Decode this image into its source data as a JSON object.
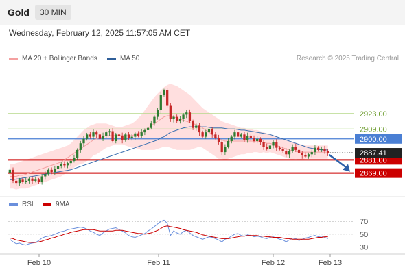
{
  "header": {
    "instrument": "Gold",
    "timeframe": "30 MIN"
  },
  "date_text": "Wednesday, February 12, 2025 11:57:05 AM CET",
  "legend": {
    "bollinger": "MA 20 + Bollinger Bands",
    "ma50": "MA 50",
    "credit": "Research © 2025 Trading Central"
  },
  "rsi_legend": {
    "rsi": "RSI",
    "ma": "9MA"
  },
  "colors": {
    "up": "#2e7d32",
    "down": "#c62828",
    "band": "#ffd9d9",
    "ma20": "#f4a0a0",
    "ma50": "#3a6fb0",
    "green_level": "#b5d98a",
    "blue_level": "#4a7fd4",
    "red_level": "#cc0000",
    "arrow": "#2b5fa8"
  },
  "chart_data": [
    {
      "type": "candlestick",
      "title": "",
      "ylim": [
        2852,
        2967
      ],
      "x_ticks": [
        "Feb 10",
        "Feb 11",
        "Feb 12",
        "Feb 13"
      ],
      "current_price": 2887.41,
      "levels": [
        {
          "value": 2923.0,
          "label": "2923.00",
          "kind": "resistance"
        },
        {
          "value": 2909.0,
          "label": "2909.00",
          "kind": "resistance"
        },
        {
          "value": 2900.0,
          "label": "2900.00",
          "kind": "pivot"
        },
        {
          "value": 2881.0,
          "label": "2881.00",
          "kind": "support"
        },
        {
          "value": 2869.0,
          "label": "2869.00",
          "kind": "support"
        }
      ],
      "close": [
        2872.0,
        2862.0,
        2860.0,
        2863.0,
        2861.0,
        2862.0,
        2864.0,
        2862.0,
        2863.0,
        2861.0,
        2866.0,
        2868.0,
        2872.0,
        2870.0,
        2873.0,
        2875.0,
        2877.0,
        2876.0,
        2878.0,
        2880.0,
        2883.0,
        2890.0,
        2896.0,
        2900.0,
        2904.0,
        2902.0,
        2906.0,
        2904.0,
        2900.0,
        2903.0,
        2906.0,
        2907.0,
        2898.0,
        2904.0,
        2903.0,
        2899.0,
        2904.0,
        2901.0,
        2902.0,
        2905.0,
        2903.0,
        2906.0,
        2908.0,
        2910.0,
        2914.0,
        2920.0,
        2926.0,
        2940.0,
        2944.0,
        2930.0,
        2918.0,
        2920.0,
        2916.0,
        2918.0,
        2922.0,
        2924.0,
        2916.0,
        2910.0,
        2912.0,
        2906.0,
        2902.0,
        2906.0,
        2909.0,
        2904.0,
        2901.0,
        2897.0,
        2888.0,
        2893.0,
        2898.0,
        2902.0,
        2906.0,
        2902.0,
        2904.0,
        2899.0,
        2903.0,
        2901.0,
        2898.0,
        2900.0,
        2897.0,
        2893.0,
        2891.0,
        2894.0,
        2897.0,
        2892.0,
        2891.0,
        2889.0,
        2886.0,
        2889.0,
        2893.0,
        2890.0,
        2887.0,
        2885.0,
        2884.0,
        2886.0,
        2888.0,
        2892.0,
        2890.0,
        2891.0,
        2889.0,
        2887.4
      ],
      "ma20": [
        2866.0,
        2866.0,
        2866.0,
        2867.0,
        2867.0,
        2868.0,
        2869.0,
        2870.0,
        2871.0,
        2872.0,
        2873.0,
        2874.0,
        2875.0,
        2876.0,
        2877.0,
        2878.0,
        2879.0,
        2881.0,
        2883.0,
        2885.0,
        2887.0,
        2889.0,
        2891.0,
        2893.0,
        2895.0,
        2897.0,
        2899.0,
        2900.0,
        2901.0,
        2902.0,
        2903.0,
        2903.0,
        2903.0,
        2903.0,
        2903.0,
        2903.0,
        2903.0,
        2903.0,
        2903.0,
        2904.0,
        2905.0,
        2906.0,
        2908.0,
        2910.0,
        2912.0,
        2914.0,
        2916.0,
        2918.0,
        2920.0,
        2921.0,
        2921.0,
        2920.0,
        2919.0,
        2918.0,
        2917.0,
        2916.0,
        2915.0,
        2914.0,
        2913.0,
        2912.0,
        2910.0,
        2908.0,
        2906.0,
        2904.0,
        2902.0,
        2900.0,
        2899.0,
        2898.0,
        2898.0,
        2898.0,
        2898.0,
        2898.0,
        2898.0,
        2898.0,
        2898.0,
        2898.0,
        2898.0,
        2898.0,
        2897.0,
        2897.0,
        2896.0,
        2896.0,
        2895.0,
        2894.0,
        2893.0,
        2892.0,
        2891.0,
        2890.0,
        2889.0,
        2889.0,
        2888.0,
        2888.0,
        2888.0,
        2888.0,
        2888.0,
        2888.0,
        2888.0,
        2888.0,
        2888.0,
        2888.0
      ],
      "band_upper": [
        2877.0,
        2877.0,
        2878.0,
        2879.0,
        2880.0,
        2881.0,
        2882.0,
        2883.0,
        2884.0,
        2885.0,
        2886.0,
        2887.0,
        2888.0,
        2889.0,
        2890.0,
        2891.0,
        2892.0,
        2893.0,
        2894.0,
        2896.0,
        2899.0,
        2902.0,
        2905.0,
        2908.0,
        2910.0,
        2912.0,
        2913.0,
        2914.0,
        2914.0,
        2914.0,
        2914.0,
        2913.0,
        2912.0,
        2911.0,
        2911.0,
        2911.0,
        2912.0,
        2913.0,
        2914.0,
        2916.0,
        2919.0,
        2922.0,
        2926.0,
        2930.0,
        2934.0,
        2938.0,
        2941.0,
        2944.0,
        2947.0,
        2949.0,
        2950.0,
        2949.0,
        2948.0,
        2946.0,
        2944.0,
        2942.0,
        2940.0,
        2937.0,
        2934.0,
        2931.0,
        2928.0,
        2926.0,
        2924.0,
        2922.0,
        2920.0,
        2918.0,
        2916.0,
        2915.0,
        2914.0,
        2913.0,
        2912.0,
        2911.0,
        2910.0,
        2910.0,
        2909.0,
        2909.0,
        2908.0,
        2908.0,
        2907.0,
        2906.0,
        2905.0,
        2904.0,
        2903.0,
        2902.0,
        2901.0,
        2900.0,
        2899.0,
        2898.0,
        2897.0,
        2896.0,
        2895.0,
        2895.0,
        2894.0,
        2894.0,
        2894.0,
        2894.0,
        2894.0,
        2894.0,
        2894.0,
        2894.0
      ],
      "band_lower": [
        2855.0,
        2855.0,
        2854.0,
        2855.0,
        2855.0,
        2855.0,
        2856.0,
        2857.0,
        2858.0,
        2859.0,
        2860.0,
        2861.0,
        2862.0,
        2863.0,
        2864.0,
        2865.0,
        2866.0,
        2868.0,
        2870.0,
        2872.0,
        2874.0,
        2876.0,
        2877.0,
        2878.0,
        2880.0,
        2882.0,
        2885.0,
        2886.0,
        2888.0,
        2890.0,
        2892.0,
        2893.0,
        2894.0,
        2895.0,
        2895.0,
        2895.0,
        2894.0,
        2893.0,
        2892.0,
        2892.0,
        2891.0,
        2890.0,
        2890.0,
        2890.0,
        2890.0,
        2890.0,
        2891.0,
        2892.0,
        2893.0,
        2893.0,
        2892.0,
        2891.0,
        2890.0,
        2890.0,
        2890.0,
        2890.0,
        2890.0,
        2891.0,
        2892.0,
        2893.0,
        2892.0,
        2890.0,
        2888.0,
        2886.0,
        2884.0,
        2882.0,
        2882.0,
        2881.0,
        2882.0,
        2883.0,
        2884.0,
        2885.0,
        2886.0,
        2886.0,
        2887.0,
        2887.0,
        2888.0,
        2888.0,
        2887.0,
        2888.0,
        2887.0,
        2888.0,
        2887.0,
        2886.0,
        2885.0,
        2884.0,
        2883.0,
        2882.0,
        2881.0,
        2882.0,
        2881.0,
        2881.0,
        2882.0,
        2882.0,
        2882.0,
        2882.0,
        2882.0,
        2882.0,
        2882.0,
        2882.0
      ],
      "ma50": [
        2863.0,
        2863.0,
        2863.5,
        2864.0,
        2864.5,
        2865.0,
        2865.5,
        2866.0,
        2866.5,
        2867.0,
        2867.5,
        2868.0,
        2868.5,
        2869.0,
        2869.5,
        2870.0,
        2870.5,
        2871.0,
        2871.5,
        2872.0,
        2873.0,
        2874.0,
        2875.0,
        2876.0,
        2877.0,
        2878.0,
        2879.0,
        2880.0,
        2881.0,
        2882.0,
        2883.0,
        2884.0,
        2885.0,
        2886.0,
        2887.0,
        2888.0,
        2889.0,
        2890.0,
        2891.0,
        2892.0,
        2893.0,
        2894.0,
        2895.0,
        2896.0,
        2897.0,
        2898.0,
        2899.0,
        2901.0,
        2902.0,
        2904.0,
        2906.0,
        2907.0,
        2908.0,
        2909.0,
        2910.0,
        2910.5,
        2911.0,
        2911.0,
        2911.0,
        2911.0,
        2911.0,
        2911.0,
        2910.5,
        2910.0,
        2910.0,
        2910.0,
        2910.0,
        2909.5,
        2909.0,
        2909.0,
        2909.0,
        2908.5,
        2908.0,
        2908.0,
        2907.5,
        2907.0,
        2906.5,
        2906.0,
        2905.5,
        2905.0,
        2904.5,
        2904.0,
        2903.0,
        2902.0,
        2901.0,
        2900.0,
        2899.0,
        2898.0,
        2897.0,
        2896.0,
        2895.0,
        2894.0,
        2893.0,
        2892.0,
        2891.5,
        2891.0,
        2890.5,
        2890.0,
        2890.0,
        2890.0
      ]
    },
    {
      "type": "line",
      "title": "",
      "ylim": [
        22,
        82
      ],
      "y_ticks": [
        70,
        50,
        30
      ],
      "series": [
        {
          "name": "RSI",
          "values": [
            42,
            38,
            35,
            36,
            34,
            33,
            35,
            36,
            37,
            40,
            44,
            46,
            47,
            48,
            50,
            52,
            54,
            55,
            57,
            58,
            59,
            60,
            61,
            60,
            58,
            55,
            53,
            50,
            48,
            52,
            55,
            58,
            59,
            60,
            57,
            55,
            52,
            48,
            46,
            45,
            47,
            49,
            51,
            55,
            58,
            62,
            66,
            70,
            72,
            67,
            48,
            55,
            52,
            50,
            54,
            56,
            52,
            48,
            46,
            44,
            42,
            44,
            46,
            45,
            43,
            41,
            38,
            42,
            44,
            47,
            50,
            51,
            48,
            47,
            49,
            48,
            46,
            47,
            46,
            44,
            43,
            45,
            46,
            44,
            42,
            41,
            38,
            41,
            44,
            43,
            40,
            42,
            44,
            45,
            47,
            48,
            46,
            47,
            45,
            43
          ]
        },
        {
          "name": "9MA",
          "values": [
            44,
            43,
            41,
            40,
            39,
            38,
            37,
            37,
            37,
            38,
            39,
            41,
            42,
            44,
            45,
            47,
            48,
            50,
            51,
            53,
            54,
            55,
            56,
            57,
            57,
            57,
            57,
            56,
            55,
            55,
            55,
            55,
            55,
            56,
            56,
            56,
            55,
            54,
            53,
            52,
            51,
            51,
            50,
            51,
            52,
            54,
            56,
            59,
            62,
            63,
            62,
            61,
            60,
            59,
            57,
            56,
            55,
            54,
            53,
            51,
            49,
            48,
            47,
            46,
            45,
            44,
            43,
            43,
            43,
            44,
            45,
            46,
            47,
            47,
            48,
            48,
            48,
            48,
            47,
            47,
            46,
            46,
            45,
            45,
            45,
            44,
            43,
            43,
            42,
            42,
            42,
            42,
            42,
            42,
            43,
            44,
            45,
            45,
            46,
            46
          ]
        }
      ]
    }
  ]
}
